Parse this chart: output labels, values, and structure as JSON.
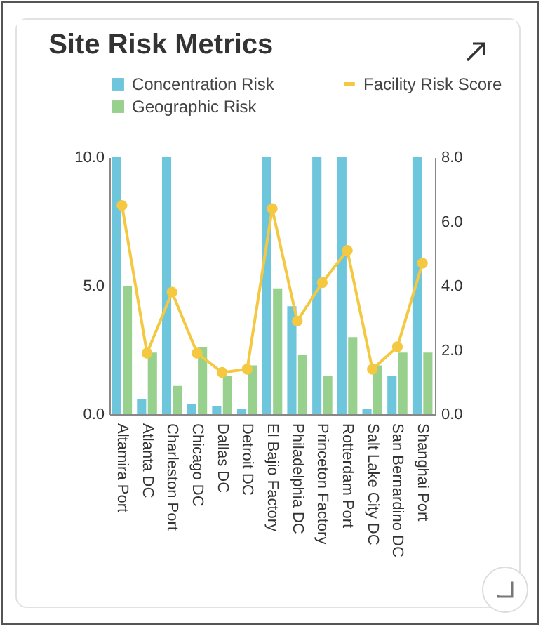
{
  "chart_data": {
    "type": "bar",
    "title": "Site Risk Metrics",
    "categories": [
      "Altamira Port",
      "Atlanta DC",
      "Charleston Port",
      "Chicago DC",
      "Dallas DC",
      "Detroit DC",
      "El Bajio Factory",
      "Philadelphia DC",
      "Princeton Factory",
      "Rotterdam Port",
      "Salt Lake City DC",
      "San Bernardino DC",
      "Shanghai Port"
    ],
    "series": [
      {
        "name": "Concentration Risk",
        "color": "#6ec6dd",
        "values": [
          10,
          0.6,
          10,
          0.4,
          0.3,
          0.2,
          10,
          4.2,
          10,
          10,
          0.2,
          1.5,
          10
        ]
      },
      {
        "name": "Geographic Risk",
        "color": "#98d08e",
        "values": [
          5.0,
          2.4,
          1.1,
          2.6,
          1.5,
          1.9,
          4.9,
          2.3,
          1.5,
          3.0,
          1.9,
          2.4,
          2.4
        ]
      },
      {
        "name": "Facility Risk Score",
        "type": "line",
        "axis": "y2",
        "color": "#f5c842",
        "values": [
          6.5,
          1.9,
          3.8,
          1.9,
          1.3,
          1.4,
          6.4,
          2.9,
          4.1,
          5.1,
          1.4,
          2.1,
          4.7
        ]
      }
    ],
    "ylim": [
      0,
      10
    ],
    "yticks": [
      {
        "value": 0,
        "label": "0.0"
      },
      {
        "value": 5,
        "label": "5.0"
      },
      {
        "value": 10,
        "label": "10.0"
      }
    ],
    "y2lim": [
      0,
      8
    ],
    "y2ticks": [
      {
        "value": 0,
        "label": "0.0"
      },
      {
        "value": 2,
        "label": "2.0"
      },
      {
        "value": 4,
        "label": "4.0"
      },
      {
        "value": 6,
        "label": "6.0"
      },
      {
        "value": 8,
        "label": "8.0"
      }
    ],
    "marker": "circle",
    "grid": false,
    "legend": "top"
  }
}
